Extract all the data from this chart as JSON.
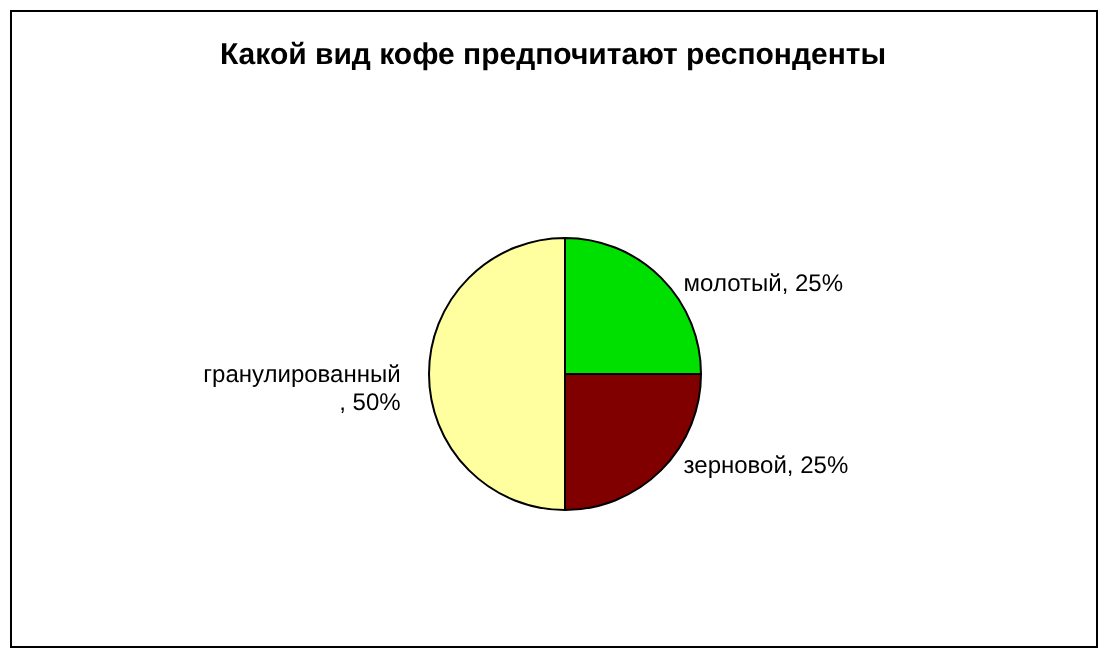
{
  "chart_data": {
    "type": "pie",
    "title": "Какой вид кофе предпочитают респонденты",
    "categories": [
      "молотый",
      "зерновой",
      "гранулированный"
    ],
    "values": [
      25,
      25,
      50
    ],
    "colors": [
      "#00e000",
      "#800000",
      "#ffffa0"
    ],
    "value_labels": [
      ", 25%",
      ", 25%",
      ", 50%"
    ],
    "legend": false
  }
}
